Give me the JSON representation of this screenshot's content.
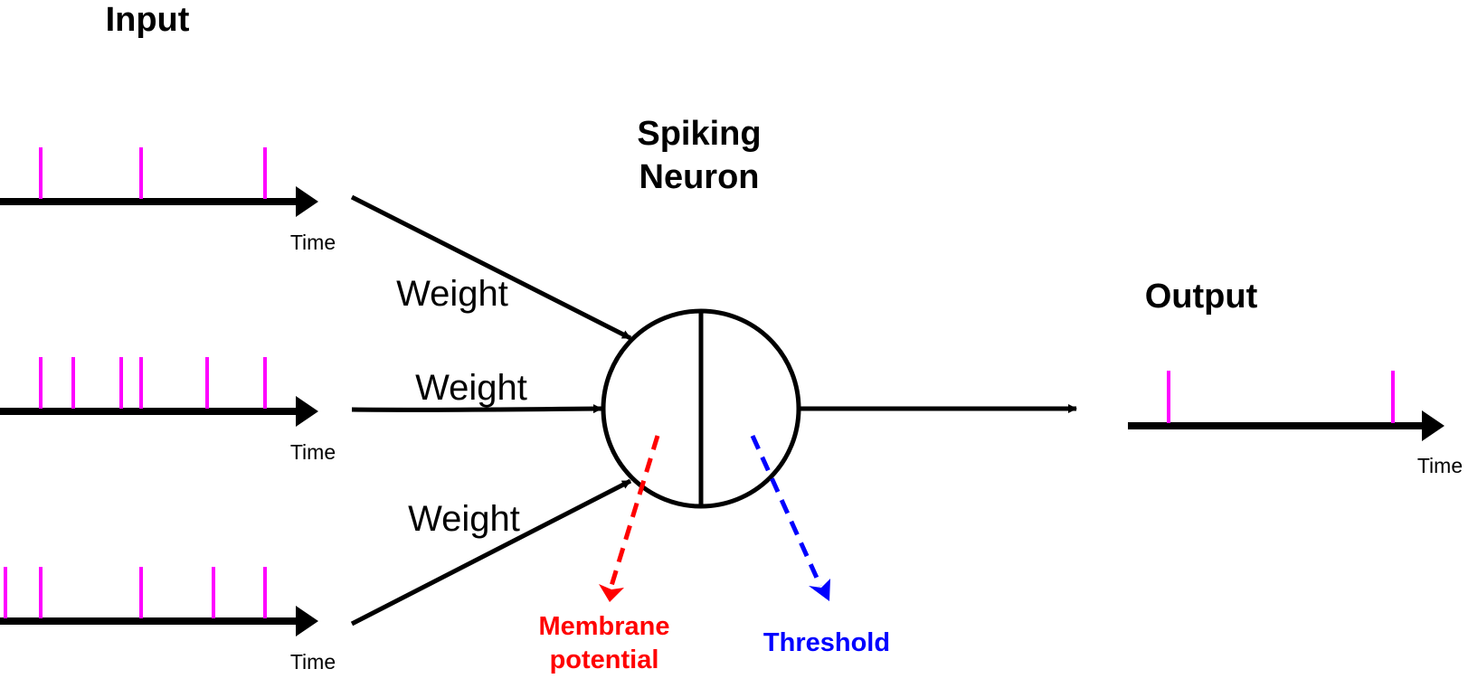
{
  "labels": {
    "input_title": "Input",
    "neuron_title_line1": "Spiking",
    "neuron_title_line2": "Neuron",
    "output_title": "Output",
    "weight_top": "Weight",
    "weight_middle": "Weight",
    "weight_bottom": "Weight",
    "time_input_1": "Time",
    "time_input_2": "Time",
    "time_input_3": "Time",
    "time_output": "Time",
    "membrane_line1": "Membrane",
    "membrane_line2": "potential",
    "threshold": "Threshold"
  },
  "colors": {
    "spike": "#ff00ff",
    "axis": "#000000",
    "membrane": "#ff0000",
    "threshold": "#0000ff"
  }
}
